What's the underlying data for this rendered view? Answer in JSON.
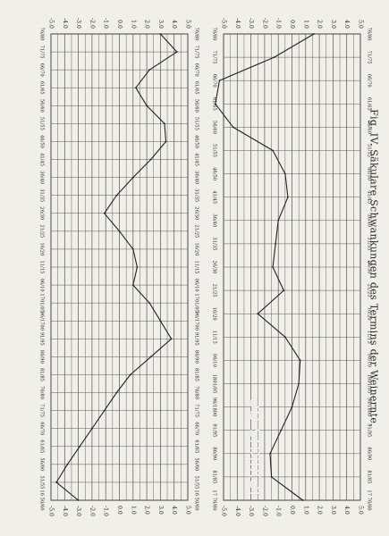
{
  "caption": "Fig. IV. Säkulare Schwankungen des Termins der Weinernte.",
  "watermark": "lexikus.de",
  "chart_data": [
    {
      "type": "line",
      "title": "",
      "xlabel": "",
      "ylabel": "",
      "x_labels": [
        "16 50/60",
        "51/55",
        "56/60",
        "61/65",
        "66/70",
        "71/75",
        "76/80",
        "81/85",
        "86/90",
        "91/95",
        "96/1700",
        "1701/05",
        "06/10",
        "11/15",
        "16/20",
        "21/25",
        "26/30",
        "31/35",
        "36/40",
        "41/45",
        "46/50",
        "51/55",
        "56/60",
        "61/65",
        "66/70",
        "71/75",
        "76/80"
      ],
      "y_ticks": [
        "-5.0",
        "-4.0",
        "-3.0",
        "-2.0",
        "-1.0",
        "0.0",
        "1.0",
        "2.0",
        "3.0",
        "4.0",
        "5.0"
      ],
      "ylim": [
        -5,
        5
      ],
      "series": [
        {
          "values": [
            -3.0,
            -4.6,
            -3.8,
            -2.9,
            -2.0,
            -1.1,
            -0.2,
            0.8,
            2.3,
            3.8,
            3.0,
            2.2,
            1.0,
            1.3,
            1.0,
            0.0,
            -1.1,
            -0.2,
            1.0,
            2.3,
            3.4,
            3.3,
            2.0,
            1.2,
            2.2,
            4.2,
            3.0
          ]
        }
      ]
    },
    {
      "type": "line",
      "title": "",
      "xlabel": "",
      "ylabel": "",
      "x_labels": [
        "17 76/80",
        "81/85",
        "86/90",
        "91/95",
        "96/1800",
        "1801/05",
        "06/10",
        "11/15",
        "16/20",
        "21/25",
        "26/30",
        "31/35",
        "36/40",
        "41/45",
        "46/50",
        "51/55",
        "56/60",
        "61/65",
        "66/70",
        "71/75",
        "76/80"
      ],
      "y_ticks": [
        "-5.0",
        "-4.0",
        "-3.0",
        "-2.0",
        "-1.0",
        "0.0",
        "1.0",
        "2.0",
        "3.0",
        "4.0",
        "5.0"
      ],
      "ylim": [
        -5,
        5
      ],
      "series": [
        {
          "values": [
            0.8,
            -1.5,
            -1.6,
            -0.8,
            0.0,
            0.5,
            0.6,
            -0.5,
            -2.5,
            -0.6,
            -1.4,
            -1.2,
            -1.0,
            -0.3,
            -0.5,
            -1.4,
            -4.3,
            -5.6,
            -5.3,
            -1.3,
            1.6
          ]
        }
      ]
    }
  ]
}
